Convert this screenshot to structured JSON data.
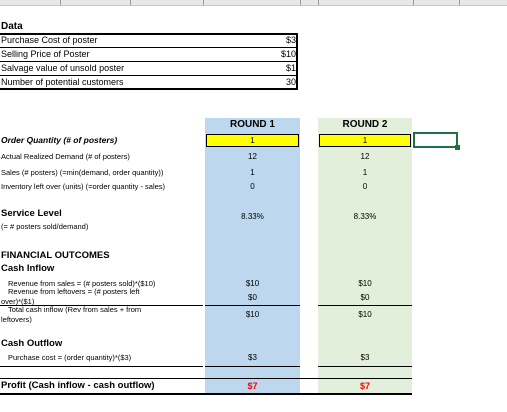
{
  "data_section": {
    "title": "Data",
    "rows": [
      {
        "label": "Purchase Cost of poster",
        "value": "$3"
      },
      {
        "label": "Selling Price of Poster",
        "value": "$10"
      },
      {
        "label": "Salvage value of unsold poster",
        "value": "$1"
      },
      {
        "label": "Number of potential customers",
        "value": "30"
      }
    ]
  },
  "rounds": {
    "r1": {
      "header": "ROUND 1",
      "order_quantity": "1",
      "actual_demand": "12",
      "sales": "1",
      "inventory_left": "0",
      "service_level": "8.33%",
      "revenue_sales": "$10",
      "revenue_leftovers": "$0",
      "total_cash_inflow": "$10",
      "purchase_cost": "$3",
      "profit": "$7"
    },
    "r2": {
      "header": "ROUND 2",
      "order_quantity": "1",
      "actual_demand": "12",
      "sales": "1",
      "inventory_left": "0",
      "service_level": "8.33%",
      "revenue_sales": "$10",
      "revenue_leftovers": "$0",
      "total_cash_inflow": "$10",
      "purchase_cost": "$3",
      "profit": "$7"
    }
  },
  "labels": {
    "order_quantity": "Order Quantity (# of posters)",
    "actual_demand": "Actual Realized Demand (# of posters)",
    "sales": "Sales (# posters) (=min(demand, order quantity))",
    "inventory_left": "Inventory left over (units) (=order quantity - sales)",
    "service_level": "Service Level",
    "service_level_sub": "(= # posters sold/demand)",
    "financial_outcomes": "FINANCIAL OUTCOMES",
    "cash_inflow": "Cash Inflow",
    "revenue_sales": "Revenue from sales = (# posters sold)*($10)",
    "revenue_leftovers_1": "Revenue from leftovers = (# posters left",
    "revenue_leftovers_2": "over)*($1)",
    "total_cash_inflow_1": "Total cash inflow (Rev from sales + from",
    "total_cash_inflow_2": "leftovers)",
    "cash_outflow": "Cash Outflow",
    "purchase_cost": "Purchase cost = (order quantity)*($3)",
    "profit": "Profit (Cash inflow - cash outflow)"
  },
  "colors": {
    "round1_fill": "#bdd7ee",
    "round2_fill": "#e2efda",
    "quantity_fill": "#ffff00",
    "profit_color": "#ff0000",
    "selection_color": "#1e7145"
  }
}
